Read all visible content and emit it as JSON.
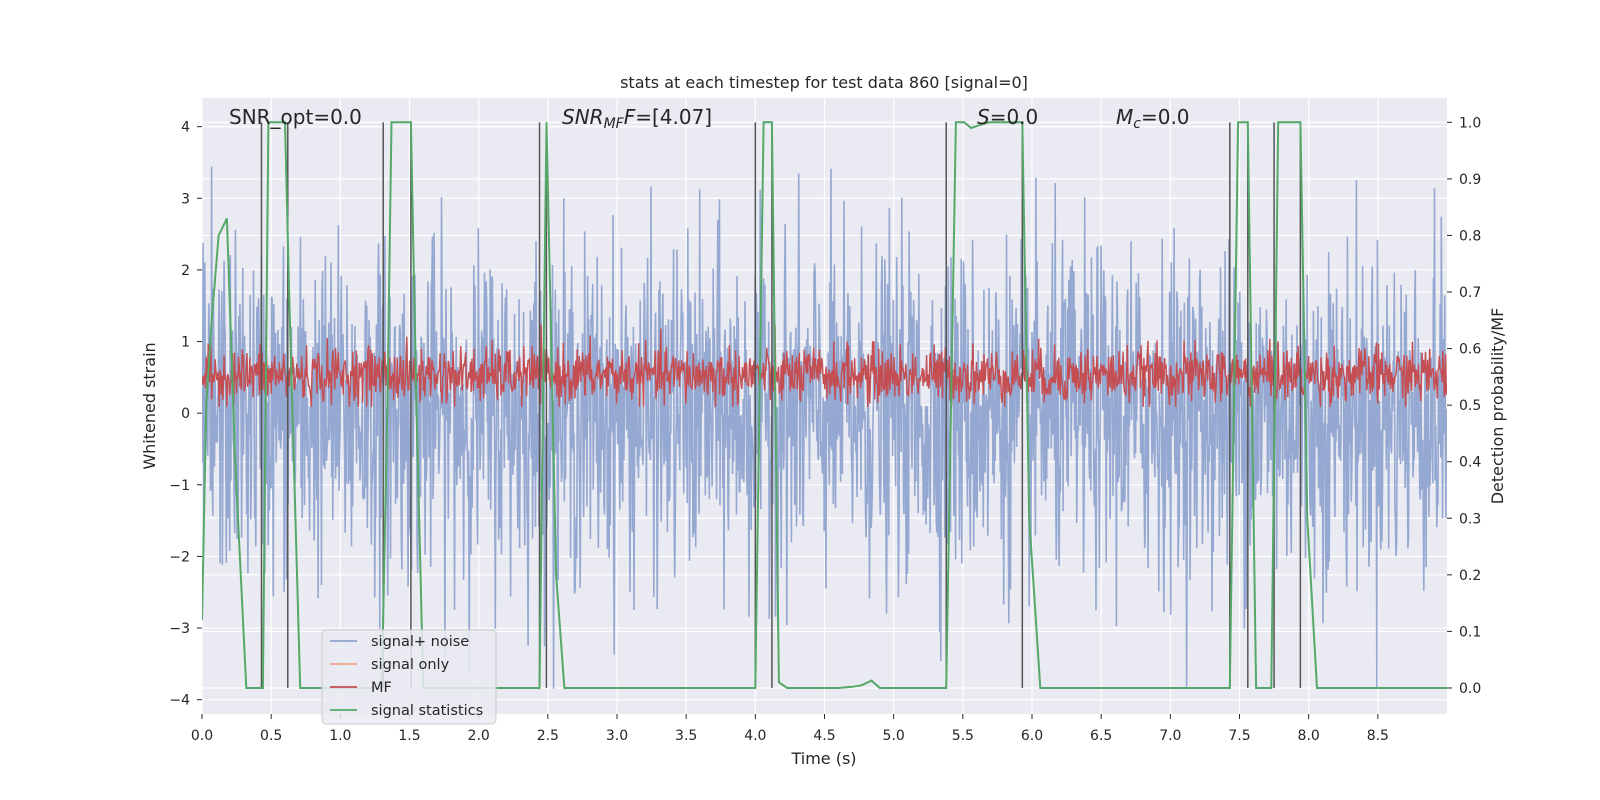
{
  "chart_data": {
    "type": "line",
    "title": "stats at each timestep for test data 860 [signal=0]",
    "xlabel": "Time (s)",
    "ylabel": "Whitened strain",
    "y2label": "Detection probability/MF",
    "xlim": [
      0,
      9.0
    ],
    "ylim": [
      -4.2,
      4.4
    ],
    "y2lim": [
      -0.046,
      1.043
    ],
    "xticks": [
      "0.0",
      "0.5",
      "1.0",
      "1.5",
      "2.0",
      "2.5",
      "3.0",
      "3.5",
      "4.0",
      "4.5",
      "5.0",
      "5.5",
      "6.0",
      "6.5",
      "7.0",
      "7.5",
      "8.0",
      "8.5"
    ],
    "yticks": [
      "−4",
      "−3",
      "−2",
      "−1",
      "0",
      "1",
      "2",
      "3",
      "4"
    ],
    "y2ticks": [
      "0.0",
      "0.1",
      "0.2",
      "0.3",
      "0.4",
      "0.5",
      "0.6",
      "0.7",
      "0.8",
      "0.9",
      "1.0"
    ],
    "grid": true,
    "legend_position": "lower-left",
    "annotations": {
      "snr_opt": "SNR_opt=0.0",
      "snr_mf_main": "SNR",
      "snr_mf_sub": "MF",
      "snr_mf_value": "=[4.07]",
      "s_main": "S",
      "s_value": "=0.0",
      "mc_main": "M",
      "mc_sub": "c",
      "mc_value": "=0.0"
    },
    "series": [
      {
        "name": "signal+ noise",
        "color": "#8fa4cf",
        "description_values": "noise, approx. zero mean, amplitude within about ±3.8"
      },
      {
        "name": "signal only",
        "color": "#f0a38a",
        "values": []
      },
      {
        "name": "MF",
        "color": "#c44e52",
        "description_values": "approx. 0.5–0.6 on right axis"
      },
      {
        "name": "signal statistics",
        "color": "#55a868",
        "axis": "right",
        "x": [
          0.0,
          0.03,
          0.07,
          0.12,
          0.18,
          0.24,
          0.32,
          0.4,
          0.44,
          0.48,
          0.6,
          0.63,
          0.71,
          0.75,
          1.3,
          1.34,
          1.37,
          1.51,
          1.55,
          1.6,
          2.44,
          2.49,
          2.56,
          2.62,
          4.0,
          4.06,
          4.12,
          4.17,
          4.23,
          4.6,
          4.7,
          4.77,
          4.84,
          4.9,
          5.38,
          5.45,
          5.51,
          5.56,
          5.62,
          5.69,
          5.93,
          5.98,
          6.06,
          7.43,
          7.49,
          7.56,
          7.62,
          7.73,
          7.78,
          7.94,
          7.99,
          8.06,
          9.0
        ],
        "y": [
          0.12,
          0.5,
          0.65,
          0.8,
          0.83,
          0.4,
          0.0,
          0.0,
          0.0,
          1.0,
          1.0,
          0.7,
          0.0,
          0.0,
          0.0,
          0.5,
          1.0,
          1.0,
          0.5,
          0.0,
          0.0,
          1.0,
          0.2,
          0.0,
          0.0,
          1.0,
          1.0,
          0.01,
          0.0,
          0.0,
          0.002,
          0.005,
          0.013,
          0.0,
          0.0,
          1.0,
          1.0,
          0.99,
          0.995,
          1.0,
          1.0,
          0.3,
          0.0,
          0.0,
          1.0,
          1.0,
          0.0,
          0.0,
          1.0,
          1.0,
          0.3,
          0.0,
          0.0
        ]
      }
    ],
    "vertical_markers_x": [
      0.43,
      0.62,
      1.31,
      1.51,
      2.44,
      2.49,
      4.0,
      4.12,
      5.38,
      5.93,
      7.43,
      7.56,
      7.75,
      7.94
    ]
  }
}
